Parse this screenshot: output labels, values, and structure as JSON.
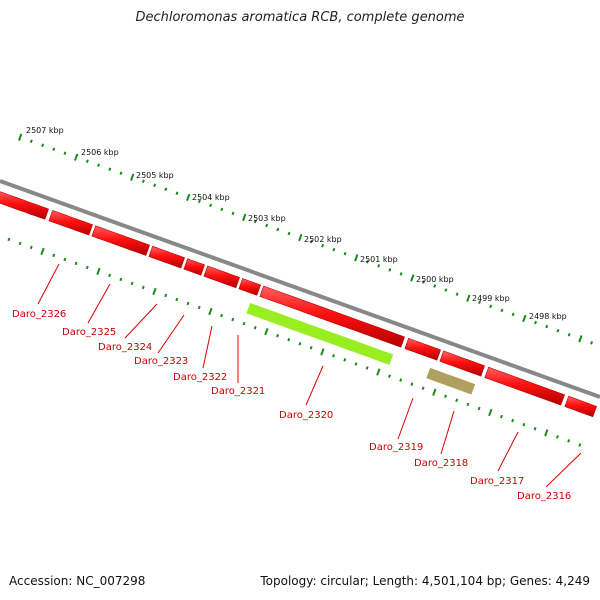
{
  "title": "Dechloromonas aromatica RCB, complete genome",
  "footer": {
    "accession": "Accession: NC_007298",
    "topology": "Topology: circular; Length: 4,501,104 bp; Genes: 4,249"
  },
  "colors": {
    "gene": "#ff1a1a",
    "gene_shade": "#bb0000",
    "backbone": "#888888",
    "ticks": "#1a8a1a",
    "label": "#cc0000",
    "highlight_green": "#99ee22",
    "highlight_olive": "#b0a060"
  },
  "ruler": [
    "2507 kbp",
    "2506 kbp",
    "2505 kbp",
    "2504 kbp",
    "2503 kbp",
    "2502 kbp",
    "2501 kbp",
    "2500 kbp",
    "2499 kbp",
    "2498 kbp"
  ],
  "genes": [
    "Daro_2326",
    "Daro_2325",
    "Daro_2324",
    "Daro_2323",
    "Daro_2322",
    "Daro_2321",
    "Daro_2320",
    "Daro_2319",
    "Daro_2318",
    "Daro_2317",
    "Daro_2316"
  ]
}
